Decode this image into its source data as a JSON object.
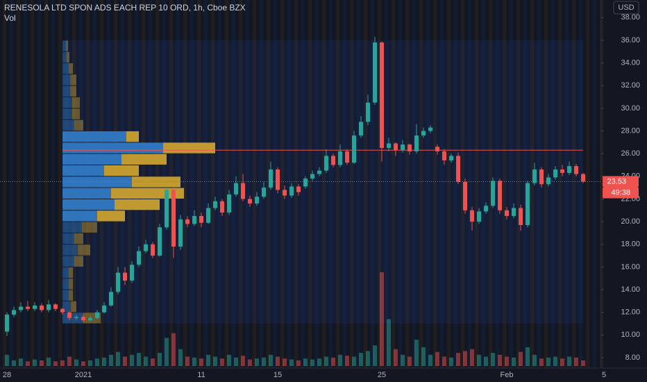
{
  "chart_data": {
    "type": "candlestick",
    "title": "RENESOLA LTD SPON ADS EACH REP 10 ORD, 1h, Cboe BZX",
    "volume_label": "Vol",
    "y_axis_label": "USD",
    "categories": [
      "28",
      null,
      null,
      null,
      null,
      null,
      null,
      null,
      null,
      null,
      null,
      "2021",
      null,
      null,
      null,
      null,
      null,
      null,
      null,
      null,
      null,
      null,
      null,
      null,
      null,
      null,
      null,
      null,
      "11",
      null,
      null,
      null,
      null,
      null,
      null,
      null,
      null,
      null,
      null,
      "15",
      null,
      null,
      null,
      null,
      null,
      null,
      null,
      null,
      null,
      null,
      null,
      null,
      null,
      null,
      "25",
      null,
      null,
      null,
      null,
      null,
      null,
      null,
      null,
      null,
      null,
      null,
      null,
      null,
      null,
      null,
      null,
      null,
      "Feb",
      null,
      null,
      null,
      null,
      null,
      null,
      null,
      null,
      null,
      null,
      null,
      null,
      null,
      "5"
    ],
    "open": [
      10.3,
      11.8,
      12.2,
      12.5,
      12.3,
      12.6,
      12.2,
      12.7,
      12.3,
      12.0,
      11.5,
      11.6,
      11.3,
      11.5,
      12.0,
      12.6,
      13.8,
      15.5,
      14.8,
      16.2,
      17.4,
      18.0,
      17.0,
      19.5,
      22.8,
      17.8,
      20.2,
      19.8,
      20.5,
      19.9,
      21.2,
      21.8,
      20.8,
      22.4,
      23.4,
      22.0,
      21.6,
      22.2,
      23.0,
      24.6,
      22.8,
      22.3,
      23.1,
      23.1,
      23.8,
      24.2,
      24.5,
      25.8,
      25.0,
      26.2,
      25.2,
      27.6,
      28.8,
      30.5,
      35.8,
      26.5,
      26.9,
      26.3,
      26.8,
      26.2,
      27.6,
      28.0,
      26.6,
      26.2,
      25.4,
      25.8,
      23.5,
      21.0,
      20.0,
      20.9,
      21.4,
      23.6,
      21.0,
      20.5,
      21.2,
      19.7,
      23.4,
      24.6,
      23.3,
      23.9,
      24.6,
      24.3,
      24.9,
      24.2,
      null,
      null,
      null
    ],
    "high": [
      12.0,
      12.5,
      12.9,
      13.0,
      12.9,
      12.8,
      13.1,
      12.8,
      12.4,
      12.1,
      11.8,
      11.8,
      11.7,
      12.2,
      12.9,
      14.2,
      16.0,
      16.0,
      16.5,
      17.8,
      18.4,
      18.2,
      19.8,
      23.0,
      23.0,
      20.6,
      20.5,
      21.0,
      20.8,
      21.6,
      22.2,
      22.0,
      22.8,
      24.0,
      24.2,
      22.3,
      22.6,
      23.5,
      25.3,
      24.8,
      23.2,
      23.4,
      23.3,
      24.0,
      24.5,
      24.8,
      26.4,
      26.0,
      26.8,
      26.4,
      28.0,
      29.3,
      31.2,
      36.3,
      35.9,
      27.4,
      27.0,
      27.2,
      26.9,
      28.6,
      28.3,
      28.5,
      26.8,
      26.4,
      26.0,
      26.1,
      23.8,
      21.3,
      21.2,
      21.7,
      23.9,
      23.8,
      21.3,
      21.6,
      21.5,
      23.6,
      25.2,
      24.8,
      24.2,
      24.9,
      25.0,
      25.3,
      25.1,
      24.3,
      null,
      null,
      null
    ],
    "low": [
      9.9,
      11.6,
      12.0,
      12.1,
      12.1,
      12.0,
      12.0,
      12.1,
      11.8,
      11.3,
      11.3,
      11.1,
      11.2,
      11.4,
      11.9,
      12.5,
      13.6,
      14.4,
      14.6,
      16.0,
      17.2,
      16.8,
      16.9,
      19.3,
      16.8,
      17.5,
      19.5,
      19.6,
      19.5,
      19.8,
      21.0,
      20.5,
      20.6,
      22.2,
      21.8,
      21.3,
      21.4,
      22.0,
      22.8,
      22.5,
      22.0,
      22.1,
      22.3,
      22.9,
      23.6,
      24.0,
      24.3,
      24.8,
      24.8,
      25.0,
      25.1,
      27.4,
      28.5,
      30.3,
      25.3,
      26.2,
      25.8,
      26.1,
      25.9,
      26.0,
      27.4,
      27.8,
      25.9,
      25.0,
      25.2,
      23.3,
      20.7,
      19.2,
      19.8,
      20.7,
      21.2,
      20.7,
      20.2,
      20.3,
      19.2,
      19.5,
      23.2,
      23.0,
      23.1,
      23.7,
      24.0,
      24.1,
      24.0,
      23.4,
      null,
      null,
      null
    ],
    "close": [
      11.8,
      12.2,
      12.5,
      12.3,
      12.6,
      12.2,
      12.7,
      12.3,
      12.0,
      11.5,
      11.6,
      11.3,
      11.5,
      12.0,
      12.6,
      13.8,
      15.5,
      14.8,
      16.2,
      17.4,
      18.0,
      17.0,
      19.5,
      22.8,
      17.8,
      20.2,
      19.8,
      20.5,
      19.9,
      21.2,
      21.8,
      20.8,
      22.4,
      23.4,
      22.0,
      21.6,
      22.2,
      23.0,
      24.6,
      22.8,
      22.3,
      23.1,
      22.6,
      23.8,
      24.2,
      24.5,
      25.8,
      25.0,
      26.2,
      25.2,
      27.6,
      28.8,
      30.5,
      35.8,
      26.5,
      26.9,
      26.3,
      26.8,
      26.2,
      27.6,
      28.0,
      28.3,
      26.2,
      25.4,
      25.8,
      23.5,
      21.0,
      20.0,
      20.9,
      21.4,
      23.6,
      21.0,
      20.5,
      21.2,
      19.7,
      23.4,
      24.6,
      23.3,
      23.9,
      24.6,
      24.3,
      24.9,
      24.2,
      23.53,
      null,
      null,
      null
    ],
    "volume": [
      12,
      6,
      8,
      5,
      7,
      6,
      9,
      5,
      6,
      10,
      7,
      5,
      6,
      8,
      9,
      12,
      15,
      10,
      12,
      14,
      10,
      8,
      14,
      30,
      35,
      18,
      10,
      9,
      8,
      12,
      10,
      8,
      12,
      9,
      11,
      7,
      8,
      9,
      12,
      10,
      8,
      7,
      6,
      8,
      7,
      8,
      10,
      9,
      12,
      11,
      10,
      14,
      16,
      22,
      100,
      50,
      18,
      12,
      10,
      28,
      20,
      12,
      15,
      10,
      9,
      14,
      16,
      18,
      12,
      10,
      14,
      12,
      10,
      9,
      15,
      20,
      12,
      8,
      9,
      10,
      8,
      10,
      9,
      6,
      null,
      null,
      null
    ],
    "volume_lim": [
      0,
      100
    ],
    "up_color": "#26a69a",
    "down_color": "#ef5350",
    "ylim": [
      7.08,
      39.55
    ],
    "yticks": [
      {
        "value": 8,
        "label": "8.00"
      },
      {
        "value": 10,
        "label": "10.00"
      },
      {
        "value": 12,
        "label": "12.00"
      },
      {
        "value": 14,
        "label": "14.00"
      },
      {
        "value": 16,
        "label": "16.00"
      },
      {
        "value": 18,
        "label": "18.00"
      },
      {
        "value": 20,
        "label": "20.00"
      },
      {
        "value": 22,
        "label": "22.00"
      },
      {
        "value": 24,
        "label": "24.00"
      },
      {
        "value": 26,
        "label": "26.00"
      },
      {
        "value": 28,
        "label": "28.00"
      },
      {
        "value": 30,
        "label": "30.00"
      },
      {
        "value": 32,
        "label": "32.00"
      },
      {
        "value": 34,
        "label": "34.00"
      },
      {
        "value": 36,
        "label": "36.00"
      },
      {
        "value": 38,
        "label": "38.00"
      }
    ],
    "last_price": 23.53,
    "countdown": "49:38",
    "poc": 26.3,
    "volume_profile": {
      "bins": [
        11,
        12,
        13,
        14,
        15,
        16,
        17,
        18,
        19,
        20,
        21,
        22,
        23,
        24,
        25,
        26,
        27,
        28,
        29,
        30,
        31,
        32,
        33,
        34,
        35,
        36
      ],
      "up": [
        30,
        12,
        9,
        9,
        9,
        17,
        22,
        17,
        28,
        50,
        75,
        70,
        100,
        60,
        85,
        145,
        92,
        17,
        14,
        14,
        11,
        11,
        9,
        6,
        5
      ],
      "down": [
        25,
        8,
        6,
        6,
        6,
        13,
        18,
        13,
        22,
        40,
        65,
        105,
        70,
        50,
        65,
        75,
        18,
        13,
        11,
        11,
        9,
        9,
        6,
        4,
        3
      ],
      "lim": [
        0,
        250
      ],
      "value_area": [
        20,
        28
      ],
      "up_color": "#3179c4",
      "down_color": "#c9a030"
    }
  }
}
